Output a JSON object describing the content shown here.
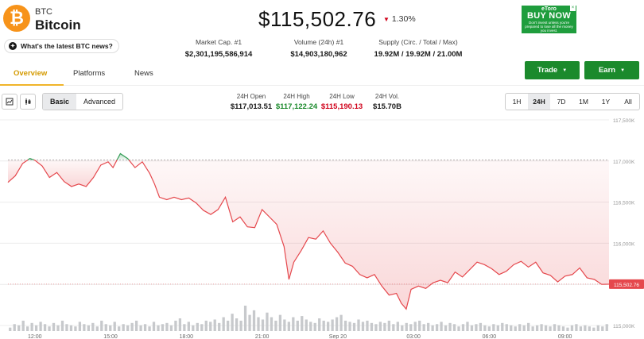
{
  "coin": {
    "symbol": "BTC",
    "name": "Bitcoin",
    "logo_glyph": "₿",
    "news_label": "What's the latest BTC news?",
    "price": "$115,502.76",
    "change": "1.30%",
    "change_direction": "down"
  },
  "ad": {
    "brand": "eToro",
    "headline": "BUY NOW",
    "disclaimer": "Don't invest unless you're prepared to lose all the money you invest."
  },
  "stats": [
    {
      "label": "Market Cap. #1",
      "value": "$2,301,195,586,914"
    },
    {
      "label": "Volume (24h) #1",
      "value": "$14,903,180,962"
    },
    {
      "label": "Supply (Circ. / Total / Max)",
      "value": "19.92M / 19.92M / 21.00M"
    }
  ],
  "tabs": [
    {
      "label": "Overview",
      "active": true
    },
    {
      "label": "Platforms",
      "active": false
    },
    {
      "label": "News",
      "active": false
    }
  ],
  "actions": {
    "trade": "Trade",
    "earn": "Earn"
  },
  "toolbar": {
    "chart_type_icons": [
      "candlestick-icon",
      "ohlc-icon"
    ],
    "view_modes": [
      "Basic",
      "Advanced"
    ],
    "selected_view": "Basic",
    "metrics": [
      {
        "label": "24H Open",
        "value": "$117,013.51",
        "color": "#1a1a1a"
      },
      {
        "label": "24H High",
        "value": "$117,122.24",
        "color": "#1b8a2c"
      },
      {
        "label": "24H Low",
        "value": "$115,190.13",
        "color": "#d0021b"
      },
      {
        "label": "24H Vol.",
        "value": "$15.70B",
        "color": "#1a1a1a"
      }
    ],
    "ranges": [
      "1H",
      "24H",
      "7D",
      "1M",
      "1Y",
      "All"
    ],
    "selected_range": "24H"
  },
  "colors": {
    "up": "#2e9b52",
    "down": "#e5484d",
    "accent": "#f0b429",
    "button": "#1b8a2c"
  },
  "chart_data": {
    "type": "area",
    "reference_price": 117013.51,
    "current_price_label": "115,502.76",
    "ylim": [
      115000,
      117500
    ],
    "y_ticks": [
      "117,500K",
      "117,000K",
      "116,500K",
      "116,000K",
      "115,500K",
      "115,000K"
    ],
    "y_tick_values": [
      117500,
      117000,
      116500,
      116000,
      115500,
      115000
    ],
    "x_ticks": [
      "12:00",
      "15:00",
      "18:00",
      "21:00",
      "Sep 20",
      "03:00",
      "06:00",
      "09:00"
    ],
    "x_tick_hours": [
      1.1,
      4.2,
      7.3,
      10.4,
      13.5,
      16.6,
      19.7,
      22.8
    ],
    "x_range_hours": [
      0,
      24.6
    ],
    "series": [
      {
        "values": [
          [
            0.0,
            116740
          ],
          [
            0.3,
            116820
          ],
          [
            0.6,
            116970
          ],
          [
            0.9,
            117030
          ],
          [
            1.1,
            117010
          ],
          [
            1.4,
            116940
          ],
          [
            1.7,
            116800
          ],
          [
            2.0,
            116860
          ],
          [
            2.3,
            116750
          ],
          [
            2.6,
            116690
          ],
          [
            2.9,
            116720
          ],
          [
            3.2,
            116690
          ],
          [
            3.5,
            116800
          ],
          [
            3.8,
            116950
          ],
          [
            4.1,
            116990
          ],
          [
            4.3,
            116920
          ],
          [
            4.6,
            117090
          ],
          [
            4.9,
            117030
          ],
          [
            5.2,
            116920
          ],
          [
            5.5,
            116990
          ],
          [
            5.8,
            116850
          ],
          [
            6.0,
            116720
          ],
          [
            6.2,
            116560
          ],
          [
            6.5,
            116530
          ],
          [
            6.8,
            116560
          ],
          [
            7.1,
            116530
          ],
          [
            7.4,
            116550
          ],
          [
            7.7,
            116490
          ],
          [
            8.0,
            116400
          ],
          [
            8.3,
            116350
          ],
          [
            8.6,
            116410
          ],
          [
            8.9,
            116560
          ],
          [
            9.2,
            116260
          ],
          [
            9.5,
            116320
          ],
          [
            9.8,
            116200
          ],
          [
            10.1,
            116190
          ],
          [
            10.4,
            116410
          ],
          [
            10.7,
            116320
          ],
          [
            11.0,
            116230
          ],
          [
            11.3,
            115960
          ],
          [
            11.5,
            115560
          ],
          [
            11.7,
            115770
          ],
          [
            12.0,
            115910
          ],
          [
            12.3,
            116070
          ],
          [
            12.6,
            116050
          ],
          [
            12.9,
            116150
          ],
          [
            13.2,
            116000
          ],
          [
            13.5,
            115890
          ],
          [
            13.8,
            115760
          ],
          [
            14.1,
            115720
          ],
          [
            14.4,
            115620
          ],
          [
            14.7,
            115580
          ],
          [
            15.0,
            115620
          ],
          [
            15.3,
            115480
          ],
          [
            15.6,
            115370
          ],
          [
            15.9,
            115390
          ],
          [
            16.1,
            115270
          ],
          [
            16.3,
            115200
          ],
          [
            16.5,
            115440
          ],
          [
            16.8,
            115480
          ],
          [
            17.1,
            115450
          ],
          [
            17.4,
            115520
          ],
          [
            17.7,
            115550
          ],
          [
            18.0,
            115520
          ],
          [
            18.3,
            115650
          ],
          [
            18.6,
            115590
          ],
          [
            18.9,
            115680
          ],
          [
            19.2,
            115770
          ],
          [
            19.5,
            115740
          ],
          [
            19.8,
            115690
          ],
          [
            20.1,
            115620
          ],
          [
            20.4,
            115660
          ],
          [
            20.7,
            115740
          ],
          [
            21.0,
            115780
          ],
          [
            21.3,
            115710
          ],
          [
            21.6,
            115770
          ],
          [
            21.9,
            115640
          ],
          [
            22.2,
            115610
          ],
          [
            22.5,
            115530
          ],
          [
            22.8,
            115600
          ],
          [
            23.1,
            115620
          ],
          [
            23.4,
            115700
          ],
          [
            23.7,
            115580
          ],
          [
            24.0,
            115560
          ],
          [
            24.3,
            115500
          ],
          [
            24.6,
            115502.76
          ]
        ]
      }
    ],
    "volume": [
      3,
      6,
      5,
      9,
      4,
      7,
      5,
      8,
      6,
      4,
      7,
      5,
      9,
      6,
      5,
      4,
      8,
      6,
      5,
      7,
      4,
      9,
      6,
      5,
      8,
      4,
      6,
      5,
      7,
      9,
      5,
      6,
      4,
      8,
      5,
      6,
      7,
      5,
      9,
      11,
      6,
      8,
      5,
      7,
      6,
      9,
      8,
      10,
      7,
      12,
      9,
      15,
      11,
      9,
      22,
      14,
      18,
      12,
      10,
      16,
      12,
      9,
      14,
      10,
      8,
      12,
      9,
      13,
      10,
      8,
      7,
      11,
      9,
      8,
      10,
      12,
      14,
      9,
      8,
      7,
      10,
      8,
      9,
      7,
      6,
      8,
      7,
      9,
      6,
      8,
      5,
      7,
      6,
      8,
      9,
      6,
      7,
      5,
      6,
      8,
      5,
      7,
      6,
      4,
      6,
      8,
      5,
      6,
      7,
      5,
      4,
      6,
      5,
      7,
      6,
      5,
      4,
      6,
      5,
      7,
      4,
      5,
      6,
      5,
      4,
      6,
      5,
      4,
      3,
      5,
      6,
      4,
      5,
      4,
      3,
      5,
      4,
      6
    ]
  }
}
